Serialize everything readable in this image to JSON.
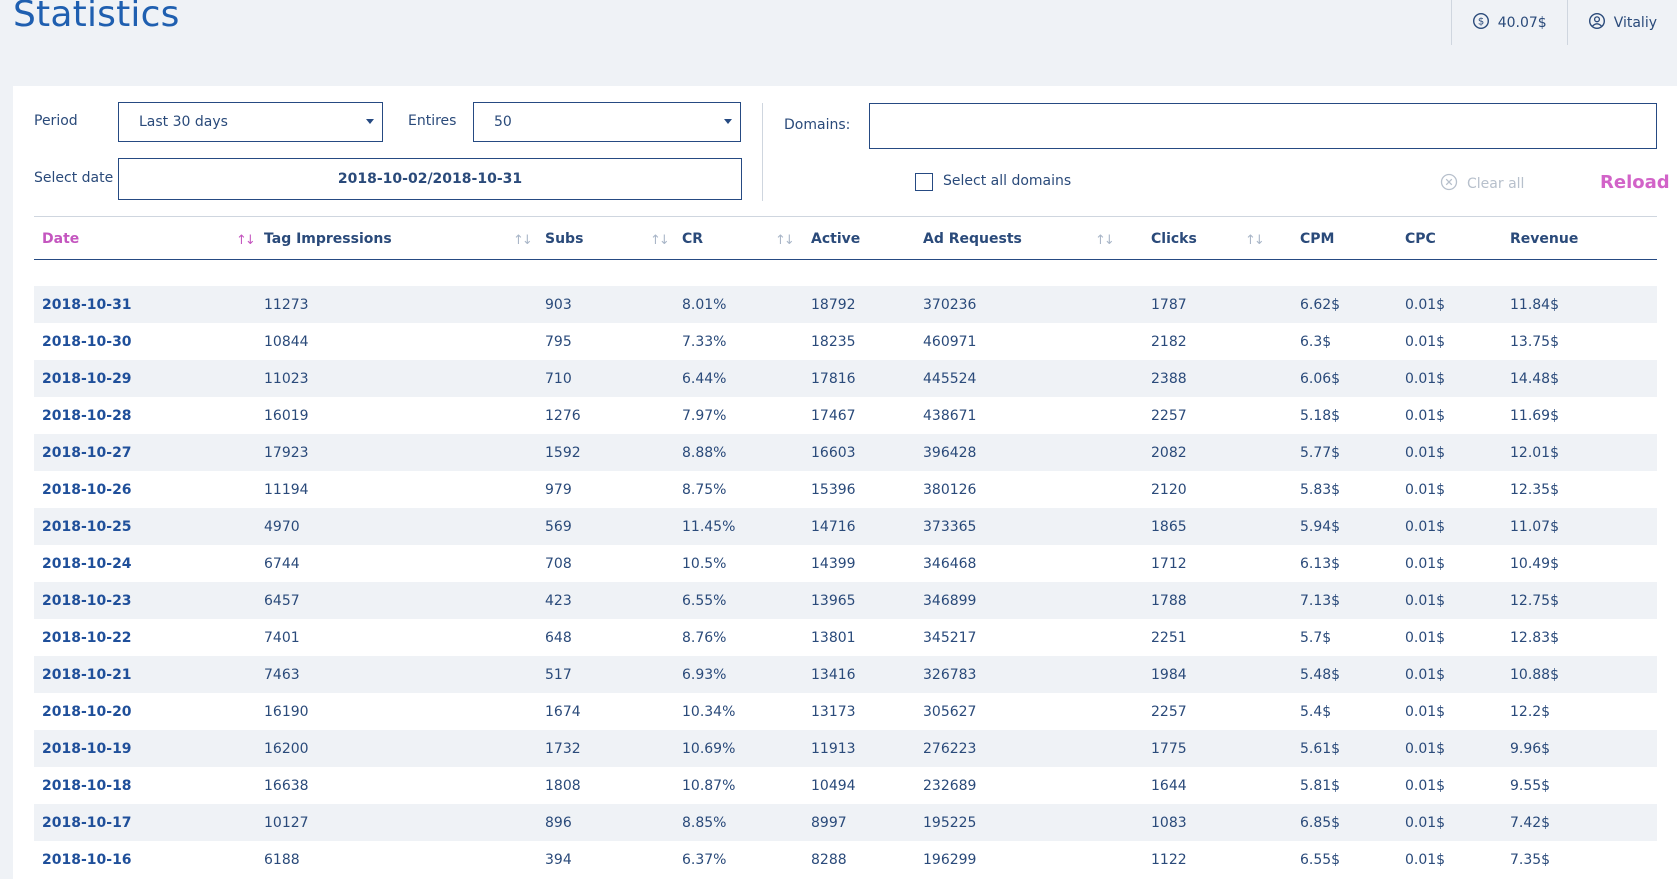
{
  "header": {
    "title": "Statistics",
    "balance": "40.07$",
    "user": "Vitaliy"
  },
  "filters": {
    "period_label": "Period",
    "period_value": "Last 30 days",
    "entries_label": "Entires",
    "entries_value": "50",
    "select_date_label": "Select date",
    "date_range": "2018-10-02/2018-10-31",
    "domains_label": "Domains:",
    "domains_value": "",
    "select_all_label": "Select all domains",
    "clear_all_label": "Clear all",
    "reload_label": "Reload"
  },
  "table": {
    "columns": [
      "Date",
      "Tag Impressions",
      "Subs",
      "CR",
      "Active",
      "Ad Requests",
      "Clicks",
      "CPM",
      "CPC",
      "Revenue"
    ],
    "sorted_column": "Date",
    "rows": [
      [
        "2018-10-31",
        "11273",
        "903",
        "8.01%",
        "18792",
        "370236",
        "1787",
        "6.62$",
        "0.01$",
        "11.84$"
      ],
      [
        "2018-10-30",
        "10844",
        "795",
        "7.33%",
        "18235",
        "460971",
        "2182",
        "6.3$",
        "0.01$",
        "13.75$"
      ],
      [
        "2018-10-29",
        "11023",
        "710",
        "6.44%",
        "17816",
        "445524",
        "2388",
        "6.06$",
        "0.01$",
        "14.48$"
      ],
      [
        "2018-10-28",
        "16019",
        "1276",
        "7.97%",
        "17467",
        "438671",
        "2257",
        "5.18$",
        "0.01$",
        "11.69$"
      ],
      [
        "2018-10-27",
        "17923",
        "1592",
        "8.88%",
        "16603",
        "396428",
        "2082",
        "5.77$",
        "0.01$",
        "12.01$"
      ],
      [
        "2018-10-26",
        "11194",
        "979",
        "8.75%",
        "15396",
        "380126",
        "2120",
        "5.83$",
        "0.01$",
        "12.35$"
      ],
      [
        "2018-10-25",
        "4970",
        "569",
        "11.45%",
        "14716",
        "373365",
        "1865",
        "5.94$",
        "0.01$",
        "11.07$"
      ],
      [
        "2018-10-24",
        "6744",
        "708",
        "10.5%",
        "14399",
        "346468",
        "1712",
        "6.13$",
        "0.01$",
        "10.49$"
      ],
      [
        "2018-10-23",
        "6457",
        "423",
        "6.55%",
        "13965",
        "346899",
        "1788",
        "7.13$",
        "0.01$",
        "12.75$"
      ],
      [
        "2018-10-22",
        "7401",
        "648",
        "8.76%",
        "13801",
        "345217",
        "2251",
        "5.7$",
        "0.01$",
        "12.83$"
      ],
      [
        "2018-10-21",
        "7463",
        "517",
        "6.93%",
        "13416",
        "326783",
        "1984",
        "5.48$",
        "0.01$",
        "10.88$"
      ],
      [
        "2018-10-20",
        "16190",
        "1674",
        "10.34%",
        "13173",
        "305627",
        "2257",
        "5.4$",
        "0.01$",
        "12.2$"
      ],
      [
        "2018-10-19",
        "16200",
        "1732",
        "10.69%",
        "11913",
        "276223",
        "1775",
        "5.61$",
        "0.01$",
        "9.96$"
      ],
      [
        "2018-10-18",
        "16638",
        "1808",
        "10.87%",
        "10494",
        "232689",
        "1644",
        "5.81$",
        "0.01$",
        "9.55$"
      ],
      [
        "2018-10-17",
        "10127",
        "896",
        "8.85%",
        "8997",
        "195225",
        "1083",
        "6.85$",
        "0.01$",
        "7.42$"
      ],
      [
        "2018-10-16",
        "6188",
        "394",
        "6.37%",
        "8288",
        "196299",
        "1122",
        "6.55$",
        "0.01$",
        "7.35$"
      ]
    ]
  },
  "colors": {
    "primary": "#1f5fb0",
    "text": "#2a4a7a",
    "accent": "#c456bf",
    "row_stripe": "#eff2f6",
    "border": "#264a82"
  },
  "icons": {
    "balance": "dollar-circle-icon",
    "user": "user-circle-icon",
    "clear": "x-circle-icon",
    "sort": "sort-icon",
    "dropdown": "caret-down-icon"
  }
}
